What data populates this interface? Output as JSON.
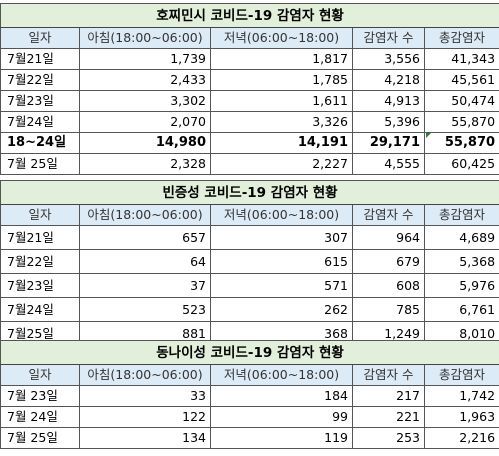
{
  "table1": {
    "title": "호찌민시 코비드-19 감염자 현황",
    "headers": [
      "일자",
      "아침(18:00~06:00)",
      "저녁(06:00~18:00)",
      "감염자 수",
      "총감염자"
    ],
    "rows": [
      [
        "7월21일",
        "1,739",
        "1,817",
        "3,556",
        "41,343"
      ],
      [
        "7월22일",
        "2,433",
        "1,785",
        "4,218",
        "45,561"
      ],
      [
        "7월23일",
        "3,302",
        "1,611",
        "4,913",
        "50,474"
      ],
      [
        "7월24일",
        "2,070",
        "3,326",
        "5,396",
        "55,870"
      ],
      [
        "18~24일",
        "14,980",
        "14,191",
        "29,171",
        "55,870"
      ],
      [
        "7월 25일",
        "2,328",
        "2,227",
        "4,555",
        "60,425"
      ]
    ]
  },
  "table2": {
    "title": "빈증성 코비드-19 감염자 현황",
    "headers": [
      "일자",
      "아침(18:00~06:00)",
      "저녁(06:00~18:00)",
      "감염자 수",
      "총감염자"
    ],
    "rows": [
      [
        "7월21일",
        "657",
        "307",
        "964",
        "4,689"
      ],
      [
        "7월22일",
        "64",
        "615",
        "679",
        "5,368"
      ],
      [
        "7월23일",
        "37",
        "571",
        "608",
        "5,976"
      ],
      [
        "7월24일",
        "523",
        "262",
        "785",
        "6,761"
      ],
      [
        "7월25일",
        "881",
        "368",
        "1,249",
        "8,010"
      ]
    ]
  },
  "table3": {
    "title": "동나이성 코비드-19 감염자 현황",
    "headers": [
      "일자",
      "아침(18:00~06:00)",
      "저녁(06:00~18:00)",
      "감염자 수",
      "총감염자"
    ],
    "rows": [
      [
        "7월 23일",
        "33",
        "184",
        "217",
        "1,742"
      ],
      [
        "7월 24일",
        "122",
        "99",
        "221",
        "1,963"
      ],
      [
        "7월 25일",
        "134",
        "119",
        "253",
        "2,216"
      ]
    ]
  }
}
